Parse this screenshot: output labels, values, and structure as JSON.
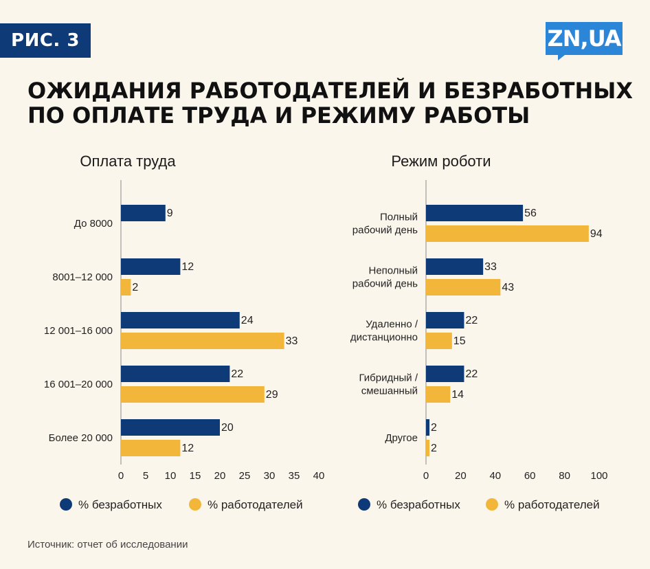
{
  "badge": "РИС. 3",
  "logo": "ZN,UA",
  "title_lines": [
    "ОЖИДАНИЯ РАБОТОДАТЕЛЕЙ И БЕЗРАБОТНЫХ",
    "ПО ОПЛАТЕ ТРУДА И РЕЖИМУ РАБОТЫ"
  ],
  "source": "Источник: отчет об исследовании",
  "colors": {
    "unemployed": "#0f3a78",
    "employers": "#f2b63a"
  },
  "chart_data": [
    {
      "type": "bar",
      "orientation": "horizontal",
      "title": "Оплата труда",
      "categories": [
        [
          "До 8000"
        ],
        [
          "8001–12 000"
        ],
        [
          "12 001–16 000"
        ],
        [
          "16 001–20 000"
        ],
        [
          "Более 20 000"
        ]
      ],
      "series": [
        {
          "name": "% безработных",
          "values": [
            9,
            12,
            24,
            22,
            20
          ]
        },
        {
          "name": "% работодателей",
          "values": [
            null,
            2,
            33,
            29,
            12
          ]
        }
      ],
      "xlim": [
        0,
        40
      ],
      "xticks": [
        0,
        5,
        10,
        15,
        20,
        25,
        30,
        35,
        40
      ],
      "legend": "bottom"
    },
    {
      "type": "bar",
      "orientation": "horizontal",
      "title": "Режим роботи",
      "categories": [
        [
          "Полный",
          "рабочий день"
        ],
        [
          "Неполный",
          "рабочий день"
        ],
        [
          "Удаленно /",
          "дистанционно"
        ],
        [
          "Гибридный /",
          "смешанный"
        ],
        [
          "Другое"
        ]
      ],
      "series": [
        {
          "name": "% безработных",
          "values": [
            56,
            33,
            22,
            22,
            2
          ]
        },
        {
          "name": "% работодателей",
          "values": [
            94,
            43,
            15,
            14,
            2
          ]
        }
      ],
      "xlim": [
        0,
        100
      ],
      "xticks": [
        0,
        20,
        40,
        60,
        80,
        100
      ],
      "legend": "bottom"
    }
  ]
}
